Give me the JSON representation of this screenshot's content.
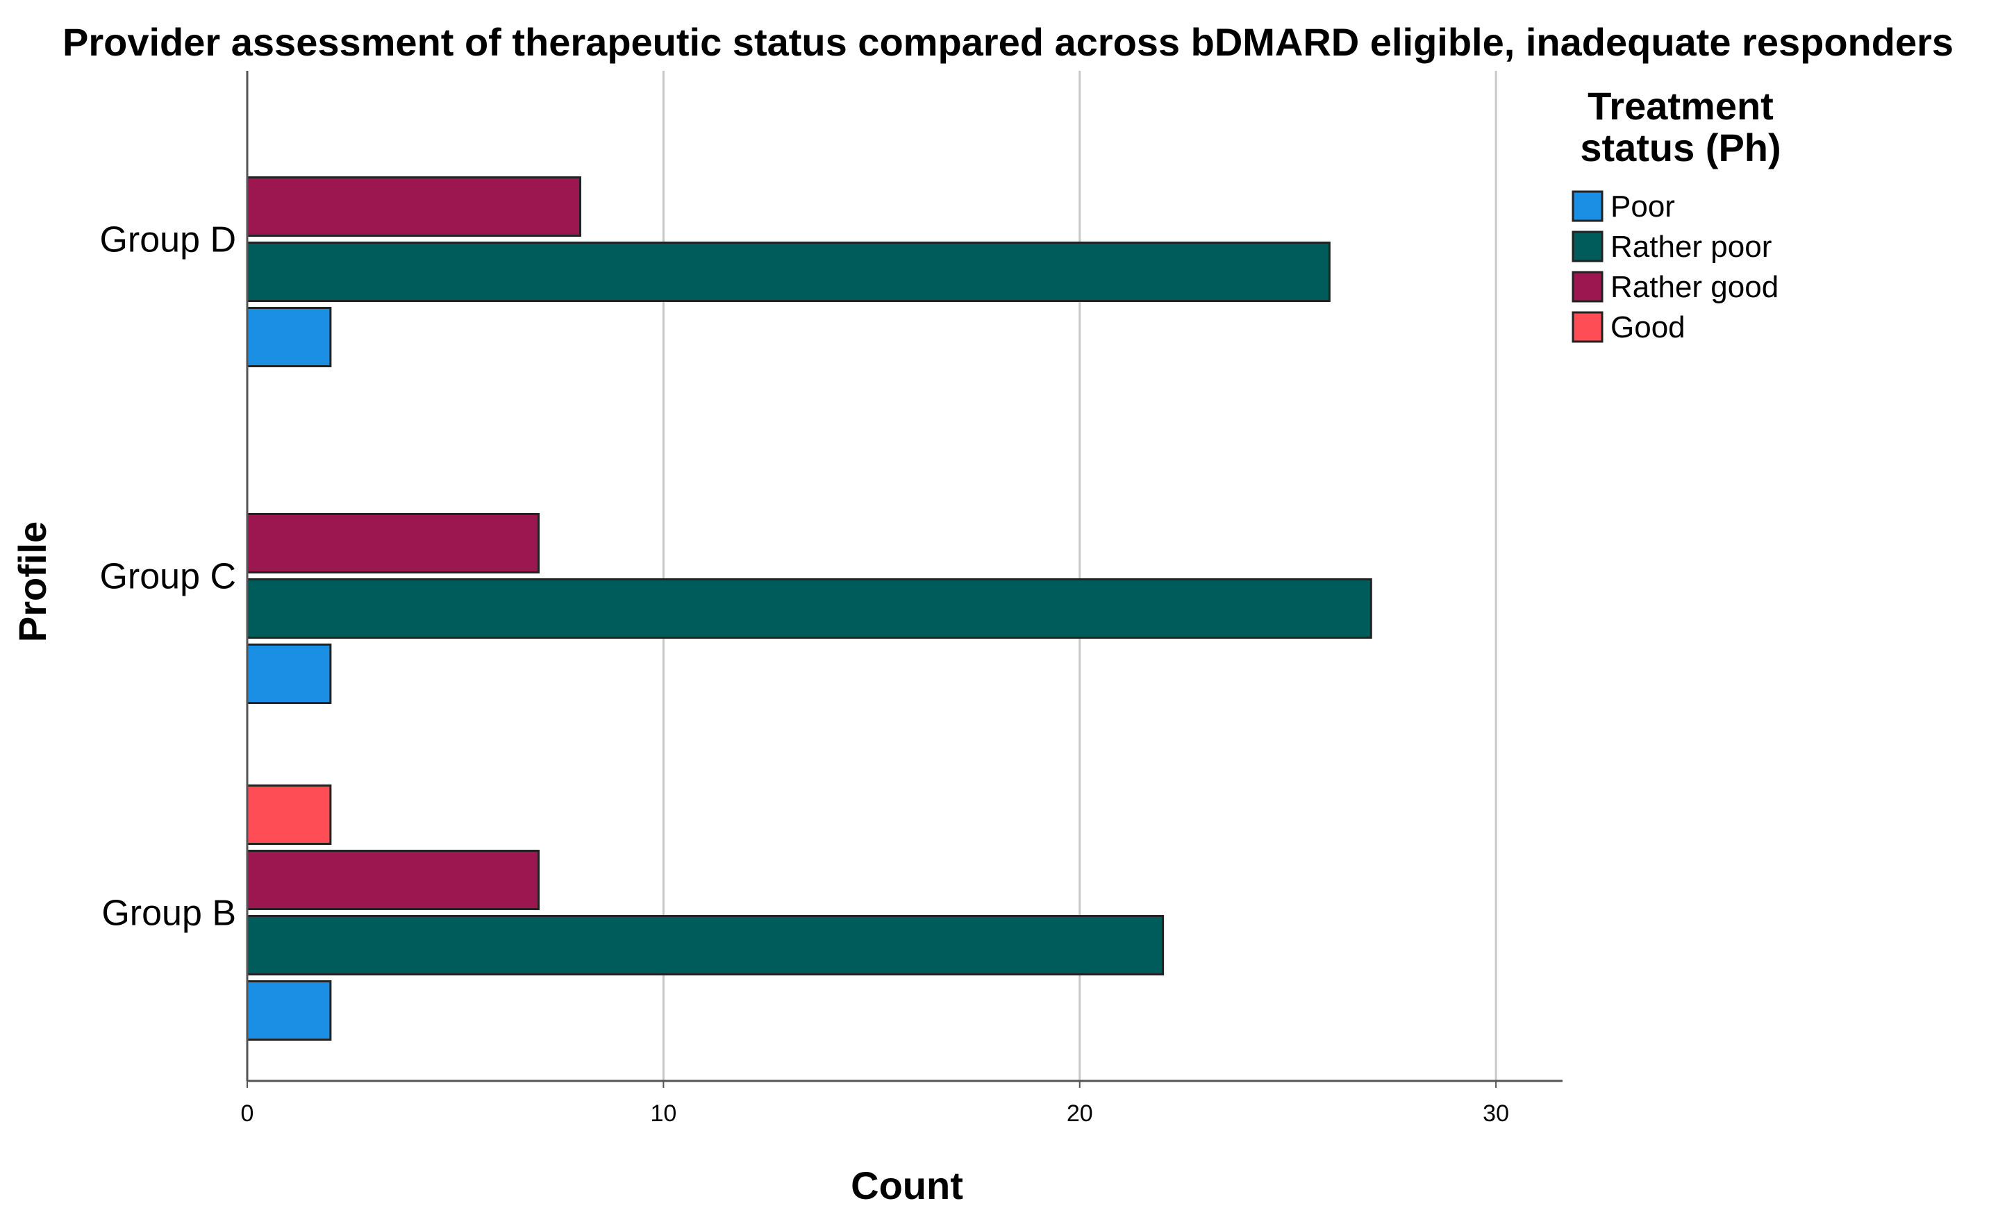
{
  "chart_data": {
    "type": "bar",
    "orientation": "horizontal",
    "title": "Provider assessment of therapeutic status compared across bDMARD eligible, inadequate responders",
    "xlabel": "Count",
    "ylabel": "Profile",
    "xlim": [
      0,
      31.6
    ],
    "xticks": [
      0,
      10,
      20,
      30
    ],
    "grid": true,
    "categories": [
      "Group D",
      "Group C",
      "Group B"
    ],
    "legend": {
      "title_lines": [
        "Treatment",
        "status (Ph)"
      ],
      "placement": "right"
    },
    "series": [
      {
        "name": "Poor",
        "color": "#1a8fe3",
        "values": [
          2,
          2,
          2
        ]
      },
      {
        "name": "Rather poor",
        "color": "#005b5b",
        "values": [
          26,
          27,
          22
        ]
      },
      {
        "name": "Rather good",
        "color": "#9c1750",
        "values": [
          8,
          7,
          7
        ]
      },
      {
        "name": "Good",
        "color": "#ff4d55",
        "values": [
          null,
          null,
          2
        ]
      }
    ]
  }
}
